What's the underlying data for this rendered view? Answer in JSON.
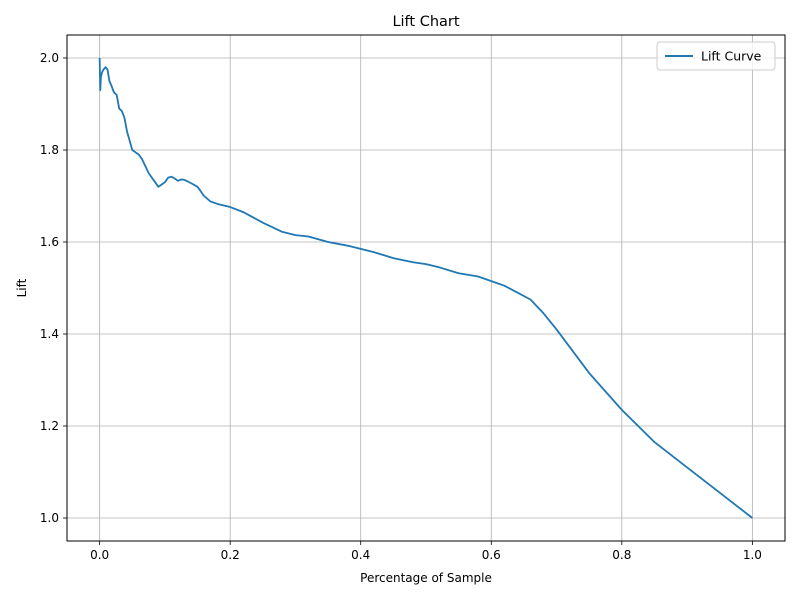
{
  "chart_data": {
    "type": "line",
    "title": "Lift Chart",
    "xlabel": "Percentage of Sample",
    "ylabel": "Lift",
    "xlim": [
      -0.05,
      1.05
    ],
    "ylim": [
      0.95,
      2.05
    ],
    "grid": true,
    "legend_position": "top-right",
    "x_ticks": [
      0.0,
      0.2,
      0.4,
      0.6,
      0.8,
      1.0
    ],
    "x_tick_labels": [
      "0.0",
      "0.2",
      "0.4",
      "0.6",
      "0.8",
      "1.0"
    ],
    "y_ticks": [
      1.0,
      1.2,
      1.4,
      1.6,
      1.8,
      2.0
    ],
    "y_tick_labels": [
      "1.0",
      "1.2",
      "1.4",
      "1.6",
      "1.8",
      "2.0"
    ],
    "series": [
      {
        "name": "Lift Curve",
        "color": "#1f77b4",
        "x": [
          0.0,
          0.001,
          0.002,
          0.004,
          0.006,
          0.009,
          0.012,
          0.015,
          0.018,
          0.022,
          0.026,
          0.03,
          0.034,
          0.038,
          0.042,
          0.046,
          0.05,
          0.055,
          0.06,
          0.065,
          0.07,
          0.075,
          0.08,
          0.085,
          0.09,
          0.095,
          0.1,
          0.105,
          0.11,
          0.115,
          0.12,
          0.125,
          0.13,
          0.14,
          0.15,
          0.16,
          0.17,
          0.18,
          0.2,
          0.22,
          0.25,
          0.28,
          0.3,
          0.32,
          0.35,
          0.38,
          0.4,
          0.42,
          0.45,
          0.48,
          0.5,
          0.52,
          0.55,
          0.58,
          0.6,
          0.62,
          0.64,
          0.66,
          0.68,
          0.7,
          0.75,
          0.8,
          0.85,
          0.9,
          0.95,
          1.0
        ],
        "y": [
          2.0,
          1.93,
          1.96,
          1.97,
          1.975,
          1.98,
          1.975,
          1.95,
          1.94,
          1.925,
          1.92,
          1.89,
          1.885,
          1.87,
          1.84,
          1.82,
          1.8,
          1.795,
          1.79,
          1.78,
          1.765,
          1.75,
          1.74,
          1.73,
          1.72,
          1.725,
          1.73,
          1.74,
          1.742,
          1.738,
          1.733,
          1.736,
          1.735,
          1.728,
          1.72,
          1.7,
          1.688,
          1.683,
          1.676,
          1.665,
          1.642,
          1.622,
          1.615,
          1.612,
          1.6,
          1.592,
          1.585,
          1.578,
          1.565,
          1.556,
          1.552,
          1.545,
          1.532,
          1.525,
          1.515,
          1.505,
          1.49,
          1.475,
          1.445,
          1.41,
          1.315,
          1.235,
          1.165,
          1.11,
          1.055,
          1.0
        ]
      }
    ]
  }
}
